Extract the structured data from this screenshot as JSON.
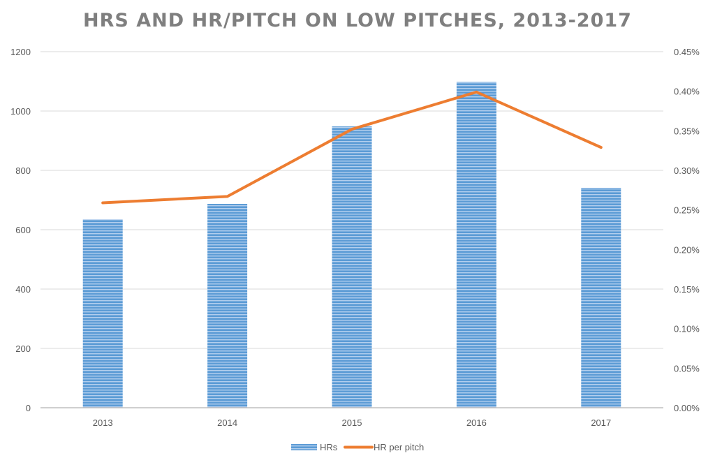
{
  "chart_data": {
    "type": "bar",
    "title": "HRS AND HR/PITCH ON LOW PITCHES, 2013-2017",
    "categories": [
      "2013",
      "2014",
      "2015",
      "2016",
      "2017"
    ],
    "series": [
      {
        "name": "HRs",
        "type": "bar",
        "axis": "left",
        "color": "#5b9bd5",
        "values": [
          635,
          687,
          948,
          1098,
          741
        ]
      },
      {
        "name": "HR per pitch",
        "type": "line",
        "axis": "right",
        "color": "#ed7d31",
        "values": [
          0.259,
          0.267,
          0.352,
          0.399,
          0.329
        ]
      }
    ],
    "xlabel": "",
    "ylabel": "",
    "ylim": [
      0,
      1200
    ],
    "yticks": [
      "0",
      "200",
      "400",
      "600",
      "800",
      "1000",
      "1200"
    ],
    "y2lim": [
      0,
      0.45
    ],
    "y2ticks": [
      "0.00%",
      "0.05%",
      "0.10%",
      "0.15%",
      "0.20%",
      "0.25%",
      "0.30%",
      "0.35%",
      "0.40%",
      "0.45%"
    ],
    "grid": true,
    "legend": "bottom"
  }
}
